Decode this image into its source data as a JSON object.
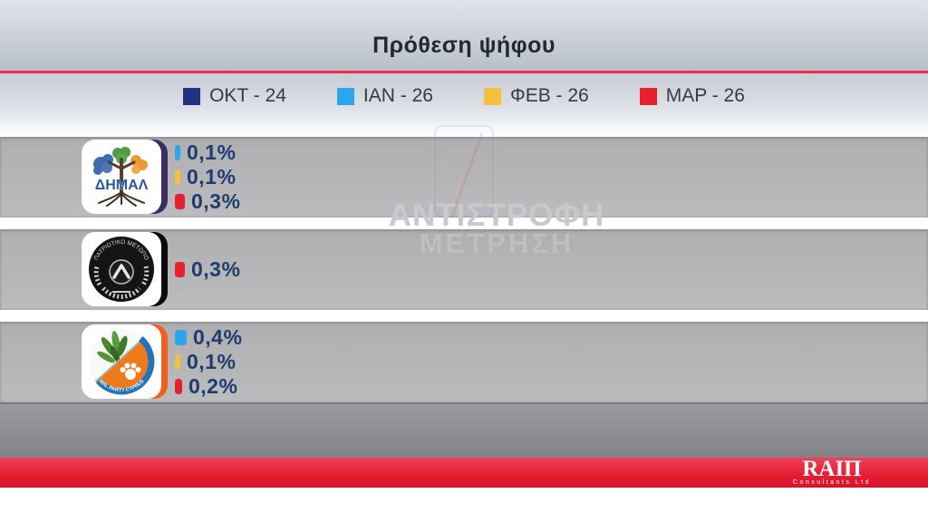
{
  "title": "Πρόθεση ψήφου",
  "legend": {
    "items": [
      {
        "label": "ΟΚΤ - 24",
        "color": "#242f86"
      },
      {
        "label": "ΙΑΝ - 26",
        "color": "#2aa6e9"
      },
      {
        "label": "ΦΕΒ - 26",
        "color": "#f4c13d"
      },
      {
        "label": "ΜΑΡ - 26",
        "color": "#e7202f"
      }
    ]
  },
  "parties": [
    {
      "id": "dimal",
      "logo_text": "ΔΗΜΑΛ",
      "frame_color": "#3a2d62",
      "entries": [
        {
          "period": "ΙΑΝ - 26",
          "label": "0,1%",
          "pct": 0.1,
          "color": "#2aa6e9"
        },
        {
          "period": "ΦΕΒ - 26",
          "label": "0,1%",
          "pct": 0.1,
          "color": "#f4c13d"
        },
        {
          "period": "ΜΑΡ - 26",
          "label": "0,3%",
          "pct": 0.3,
          "color": "#e7202f"
        }
      ]
    },
    {
      "id": "patriotiko-metopo",
      "logo_text": "ΠΑΤΡΙΩΤΙΚΟ ΜΕΤΩΠΟ",
      "frame_color": "#0b0b0d",
      "entries": [
        {
          "period": "ΜΑΡ - 26",
          "label": "0,3%",
          "pct": 0.3,
          "color": "#e7202f"
        }
      ]
    },
    {
      "id": "animal-party-cyprus",
      "logo_text": "MAL PARTY CYPRUS",
      "frame_color": "#f05f1d",
      "entries": [
        {
          "period": "ΙΑΝ - 26",
          "label": "0,4%",
          "pct": 0.4,
          "color": "#2aa6e9"
        },
        {
          "period": "ΦΕΒ - 26",
          "label": "0,1%",
          "pct": 0.1,
          "color": "#f4c13d"
        },
        {
          "period": "ΜΑΡ - 26",
          "label": "0,2%",
          "pct": 0.2,
          "color": "#e7202f"
        }
      ]
    }
  ],
  "watermark": {
    "line1": "ΑΝΤΙΣΤΡΟΦΗ",
    "line2": "ΜΕΤΡΗΣΗ"
  },
  "footer": {
    "brand": "RAIΠ",
    "subtitle": "Consultants Ltd"
  },
  "chart_data": {
    "type": "bar",
    "title": "Πρόθεση ψήφου",
    "categories": [
      "ΔΗΜΑΛ",
      "ΠΑΤΡΙΩΤΙΚΟ ΜΕΤΩΠΟ",
      "MAL PARTY CYPRUS"
    ],
    "series": [
      {
        "name": "ΟΚΤ - 24",
        "color": "#242f86",
        "values": [
          null,
          null,
          null
        ]
      },
      {
        "name": "ΙΑΝ - 26",
        "color": "#2aa6e9",
        "values": [
          0.1,
          null,
          0.4
        ]
      },
      {
        "name": "ΦΕΒ - 26",
        "color": "#f4c13d",
        "values": [
          0.1,
          null,
          0.1
        ]
      },
      {
        "name": "ΜΑΡ - 26",
        "color": "#e7202f",
        "values": [
          0.3,
          0.3,
          0.2
        ]
      }
    ],
    "unit": "%",
    "value_labels": [
      [
        "0,1%",
        "0,1%",
        "0,3%"
      ],
      [
        "0,3%"
      ],
      [
        "0,4%",
        "0,1%",
        "0,2%"
      ]
    ],
    "legend_position": "top",
    "grid": false,
    "orientation": "horizontal"
  }
}
